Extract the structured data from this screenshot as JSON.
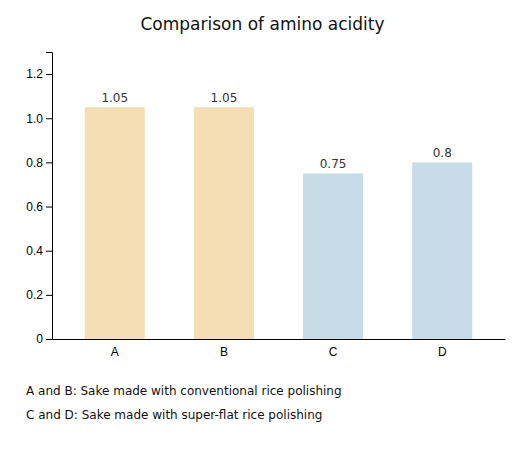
{
  "chart_data": {
    "type": "bar",
    "title": "Comparison of amino acidity",
    "categories": [
      "A",
      "B",
      "C",
      "D"
    ],
    "values": [
      1.05,
      1.05,
      0.75,
      0.8
    ],
    "colors": [
      "#F5DEB3",
      "#F5DEB3",
      "#C8DCE8",
      "#C8DCE8"
    ],
    "ylim": [
      0,
      1.3
    ],
    "yticks": [
      0,
      0.2,
      0.4,
      0.6,
      0.8,
      {
        "value": 1.0,
        "label": "1.0"
      },
      1.2
    ],
    "data_labels": true,
    "grid": false,
    "annotations": [
      "A and B: Sake made with conventional rice polishing",
      "C and D: Sake made with super-flat rice polishing"
    ]
  }
}
